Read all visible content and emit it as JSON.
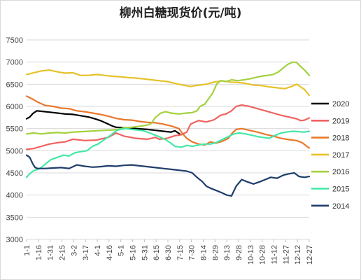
{
  "chart_data": {
    "type": "line",
    "title": "柳州白糖现货价(元/吨)",
    "xlabel": "",
    "ylabel": "",
    "ylim": [
      3000,
      7500
    ],
    "y_ticks": [
      3000,
      3500,
      4000,
      4500,
      5000,
      5500,
      6000,
      6500,
      7000,
      7500
    ],
    "x_ticks": [
      "1-1",
      "1-16",
      "1-31",
      "2-15",
      "3-2",
      "3-17",
      "4-1",
      "4-16",
      "5-1",
      "5-16",
      "5-31",
      "6-15",
      "6-30",
      "7-15",
      "7-30",
      "8-14",
      "8-29",
      "9-13",
      "9-28",
      "10-13",
      "10-28",
      "11-12",
      "11-27",
      "12-12",
      "12-27"
    ],
    "x_range_days": [
      1,
      361
    ],
    "grid": true,
    "legend_position": "right",
    "series": [
      {
        "name": "2020",
        "color": "#000000",
        "points": [
          [
            1,
            5720
          ],
          [
            5,
            5760
          ],
          [
            9,
            5840
          ],
          [
            14,
            5900
          ],
          [
            20,
            5890
          ],
          [
            30,
            5870
          ],
          [
            40,
            5850
          ],
          [
            50,
            5830
          ],
          [
            60,
            5820
          ],
          [
            70,
            5790
          ],
          [
            80,
            5760
          ],
          [
            88,
            5720
          ],
          [
            95,
            5680
          ],
          [
            100,
            5640
          ],
          [
            105,
            5600
          ],
          [
            110,
            5560
          ],
          [
            115,
            5530
          ],
          [
            125,
            5520
          ],
          [
            140,
            5500
          ],
          [
            155,
            5480
          ],
          [
            170,
            5450
          ],
          [
            180,
            5430
          ],
          [
            185,
            5420
          ],
          [
            190,
            5450
          ],
          [
            196,
            5380
          ]
        ]
      },
      {
        "name": "2019",
        "color": "#f0625f",
        "points": [
          [
            1,
            5030
          ],
          [
            10,
            5050
          ],
          [
            20,
            5100
          ],
          [
            30,
            5150
          ],
          [
            40,
            5180
          ],
          [
            50,
            5200
          ],
          [
            60,
            5260
          ],
          [
            75,
            5230
          ],
          [
            90,
            5240
          ],
          [
            105,
            5300
          ],
          [
            115,
            5400
          ],
          [
            125,
            5330
          ],
          [
            140,
            5280
          ],
          [
            155,
            5260
          ],
          [
            165,
            5300
          ],
          [
            170,
            5260
          ],
          [
            180,
            5280
          ],
          [
            190,
            5340
          ],
          [
            198,
            5360
          ],
          [
            205,
            5420
          ],
          [
            210,
            5600
          ],
          [
            220,
            5680
          ],
          [
            230,
            5650
          ],
          [
            240,
            5700
          ],
          [
            248,
            5800
          ],
          [
            255,
            5830
          ],
          [
            262,
            5900
          ],
          [
            268,
            6000
          ],
          [
            275,
            6030
          ],
          [
            285,
            6000
          ],
          [
            295,
            5950
          ],
          [
            305,
            5900
          ],
          [
            315,
            5850
          ],
          [
            325,
            5800
          ],
          [
            335,
            5760
          ],
          [
            345,
            5720
          ],
          [
            350,
            5680
          ],
          [
            355,
            5690
          ],
          [
            361,
            5740
          ]
        ]
      },
      {
        "name": "2018",
        "color": "#e8782c",
        "points": [
          [
            1,
            6230
          ],
          [
            8,
            6170
          ],
          [
            15,
            6100
          ],
          [
            25,
            6020
          ],
          [
            35,
            6000
          ],
          [
            45,
            5960
          ],
          [
            55,
            5950
          ],
          [
            65,
            5900
          ],
          [
            75,
            5880
          ],
          [
            85,
            5850
          ],
          [
            95,
            5820
          ],
          [
            105,
            5780
          ],
          [
            115,
            5730
          ],
          [
            125,
            5700
          ],
          [
            135,
            5690
          ],
          [
            145,
            5660
          ],
          [
            155,
            5640
          ],
          [
            165,
            5630
          ],
          [
            175,
            5600
          ],
          [
            185,
            5560
          ],
          [
            195,
            5500
          ],
          [
            200,
            5380
          ],
          [
            205,
            5280
          ],
          [
            212,
            5200
          ],
          [
            220,
            5150
          ],
          [
            228,
            5130
          ],
          [
            235,
            5200
          ],
          [
            242,
            5170
          ],
          [
            250,
            5210
          ],
          [
            258,
            5280
          ],
          [
            263,
            5400
          ],
          [
            268,
            5480
          ],
          [
            275,
            5500
          ],
          [
            285,
            5460
          ],
          [
            295,
            5420
          ],
          [
            305,
            5370
          ],
          [
            315,
            5330
          ],
          [
            325,
            5280
          ],
          [
            335,
            5250
          ],
          [
            345,
            5230
          ],
          [
            352,
            5180
          ],
          [
            358,
            5100
          ],
          [
            361,
            5060
          ]
        ]
      },
      {
        "name": "2017",
        "color": "#e6c229",
        "points": [
          [
            1,
            6720
          ],
          [
            10,
            6760
          ],
          [
            20,
            6800
          ],
          [
            30,
            6820
          ],
          [
            40,
            6780
          ],
          [
            50,
            6750
          ],
          [
            60,
            6760
          ],
          [
            70,
            6700
          ],
          [
            80,
            6700
          ],
          [
            90,
            6720
          ],
          [
            100,
            6700
          ],
          [
            110,
            6680
          ],
          [
            120,
            6670
          ],
          [
            130,
            6650
          ],
          [
            140,
            6640
          ],
          [
            150,
            6620
          ],
          [
            160,
            6600
          ],
          [
            170,
            6580
          ],
          [
            180,
            6560
          ],
          [
            190,
            6520
          ],
          [
            200,
            6480
          ],
          [
            210,
            6450
          ],
          [
            220,
            6480
          ],
          [
            230,
            6500
          ],
          [
            240,
            6550
          ],
          [
            250,
            6580
          ],
          [
            260,
            6550
          ],
          [
            270,
            6540
          ],
          [
            280,
            6520
          ],
          [
            290,
            6480
          ],
          [
            300,
            6470
          ],
          [
            310,
            6440
          ],
          [
            320,
            6420
          ],
          [
            330,
            6400
          ],
          [
            340,
            6460
          ],
          [
            345,
            6500
          ],
          [
            350,
            6440
          ],
          [
            355,
            6380
          ],
          [
            361,
            6250
          ]
        ]
      },
      {
        "name": "2016",
        "color": "#a3d13f",
        "points": [
          [
            1,
            5380
          ],
          [
            10,
            5400
          ],
          [
            20,
            5380
          ],
          [
            30,
            5400
          ],
          [
            40,
            5410
          ],
          [
            50,
            5400
          ],
          [
            60,
            5420
          ],
          [
            70,
            5430
          ],
          [
            80,
            5440
          ],
          [
            90,
            5450
          ],
          [
            100,
            5460
          ],
          [
            110,
            5470
          ],
          [
            118,
            5480
          ],
          [
            125,
            5520
          ],
          [
            135,
            5530
          ],
          [
            145,
            5550
          ],
          [
            155,
            5580
          ],
          [
            160,
            5620
          ],
          [
            165,
            5750
          ],
          [
            172,
            5850
          ],
          [
            178,
            5880
          ],
          [
            185,
            5850
          ],
          [
            195,
            5830
          ],
          [
            205,
            5850
          ],
          [
            212,
            5860
          ],
          [
            218,
            5900
          ],
          [
            222,
            6000
          ],
          [
            228,
            6050
          ],
          [
            232,
            6150
          ],
          [
            238,
            6300
          ],
          [
            243,
            6500
          ],
          [
            248,
            6580
          ],
          [
            255,
            6560
          ],
          [
            262,
            6600
          ],
          [
            270,
            6580
          ],
          [
            278,
            6600
          ],
          [
            285,
            6620
          ],
          [
            292,
            6650
          ],
          [
            300,
            6680
          ],
          [
            308,
            6700
          ],
          [
            315,
            6720
          ],
          [
            322,
            6780
          ],
          [
            328,
            6870
          ],
          [
            334,
            6950
          ],
          [
            340,
            7000
          ],
          [
            345,
            6990
          ],
          [
            350,
            6900
          ],
          [
            355,
            6820
          ],
          [
            361,
            6700
          ]
        ]
      },
      {
        "name": "2015",
        "color": "#45e8a6",
        "points": [
          [
            1,
            4400
          ],
          [
            5,
            4480
          ],
          [
            10,
            4550
          ],
          [
            18,
            4600
          ],
          [
            25,
            4700
          ],
          [
            32,
            4800
          ],
          [
            40,
            4850
          ],
          [
            48,
            4900
          ],
          [
            55,
            4880
          ],
          [
            62,
            4950
          ],
          [
            70,
            4980
          ],
          [
            78,
            5000
          ],
          [
            85,
            5100
          ],
          [
            92,
            5150
          ],
          [
            100,
            5250
          ],
          [
            108,
            5350
          ],
          [
            115,
            5450
          ],
          [
            120,
            5480
          ],
          [
            128,
            5500
          ],
          [
            135,
            5480
          ],
          [
            142,
            5470
          ],
          [
            150,
            5450
          ],
          [
            158,
            5400
          ],
          [
            165,
            5350
          ],
          [
            172,
            5300
          ],
          [
            178,
            5250
          ],
          [
            184,
            5180
          ],
          [
            190,
            5100
          ],
          [
            198,
            5080
          ],
          [
            205,
            5120
          ],
          [
            212,
            5100
          ],
          [
            220,
            5130
          ],
          [
            228,
            5150
          ],
          [
            235,
            5150
          ],
          [
            242,
            5180
          ],
          [
            250,
            5250
          ],
          [
            258,
            5320
          ],
          [
            265,
            5380
          ],
          [
            272,
            5400
          ],
          [
            280,
            5380
          ],
          [
            288,
            5350
          ],
          [
            295,
            5320
          ],
          [
            302,
            5300
          ],
          [
            310,
            5280
          ],
          [
            318,
            5350
          ],
          [
            325,
            5400
          ],
          [
            332,
            5420
          ],
          [
            340,
            5440
          ],
          [
            348,
            5430
          ],
          [
            355,
            5420
          ],
          [
            361,
            5440
          ]
        ]
      },
      {
        "name": "2014",
        "color": "#1f3d6b",
        "points": [
          [
            1,
            4900
          ],
          [
            5,
            4850
          ],
          [
            9,
            4700
          ],
          [
            12,
            4620
          ],
          [
            15,
            4600
          ],
          [
            25,
            4600
          ],
          [
            35,
            4610
          ],
          [
            45,
            4620
          ],
          [
            55,
            4600
          ],
          [
            65,
            4680
          ],
          [
            75,
            4650
          ],
          [
            85,
            4630
          ],
          [
            95,
            4640
          ],
          [
            105,
            4660
          ],
          [
            115,
            4650
          ],
          [
            125,
            4670
          ],
          [
            135,
            4680
          ],
          [
            145,
            4660
          ],
          [
            155,
            4640
          ],
          [
            165,
            4620
          ],
          [
            175,
            4600
          ],
          [
            185,
            4580
          ],
          [
            195,
            4560
          ],
          [
            205,
            4540
          ],
          [
            212,
            4500
          ],
          [
            218,
            4400
          ],
          [
            225,
            4300
          ],
          [
            230,
            4200
          ],
          [
            236,
            4150
          ],
          [
            243,
            4100
          ],
          [
            250,
            4050
          ],
          [
            256,
            4000
          ],
          [
            262,
            3980
          ],
          [
            268,
            4200
          ],
          [
            275,
            4350
          ],
          [
            282,
            4300
          ],
          [
            290,
            4250
          ],
          [
            298,
            4300
          ],
          [
            305,
            4350
          ],
          [
            312,
            4400
          ],
          [
            320,
            4380
          ],
          [
            328,
            4450
          ],
          [
            335,
            4480
          ],
          [
            342,
            4500
          ],
          [
            348,
            4420
          ],
          [
            355,
            4400
          ],
          [
            361,
            4420
          ]
        ]
      }
    ]
  }
}
